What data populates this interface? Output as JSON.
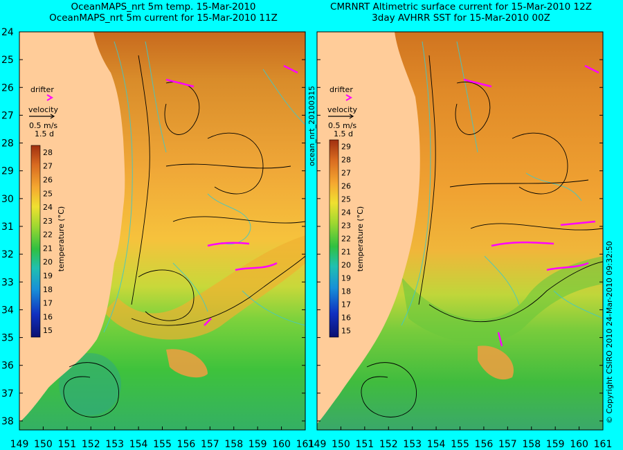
{
  "left_panel": {
    "title_line1": "OceanMAPS_nrt 5m temp. 15-Mar-2010",
    "title_line2": "OceanMAPS_nrt 5m current for 15-Mar-2010 11Z"
  },
  "right_panel": {
    "title_line1": "CMRNRT Altimetric surface current for 15-Mar-2010 12Z",
    "title_line2": "3day AVHRR SST for 15-Mar-2010 00Z"
  },
  "legend": {
    "drifter_label": "drifter",
    "velocity_label": "velocity",
    "velocity_scale": "0.5 m/s",
    "duration_scale": "1.5 d",
    "colorbar_title": "temperature (°C)",
    "left_ticks": [
      15,
      16,
      17,
      18,
      19,
      20,
      21,
      22,
      23,
      24,
      25,
      26,
      27,
      28
    ],
    "right_ticks": [
      15,
      16,
      17,
      18,
      19,
      20,
      21,
      22,
      23,
      24,
      25,
      26,
      27,
      28,
      29
    ]
  },
  "axes": {
    "lat_labels": [
      "24",
      "25",
      "26",
      "27",
      "28",
      "29",
      "30",
      "31",
      "32",
      "33",
      "34",
      "35",
      "36",
      "37",
      "38"
    ],
    "lon_labels": [
      "149",
      "150",
      "151",
      "152",
      "153",
      "154",
      "155",
      "156",
      "157",
      "158",
      "159",
      "160",
      "161"
    ]
  },
  "side_text": {
    "file_id": "ocean_nrt_20100315",
    "copyright": "© Copyright CSIRO 2010   24-Mar-2010 09:32:50"
  },
  "colors": {
    "background": "#00ffff",
    "land": "#ffcc99",
    "drifter": "#ff00ff",
    "contour": "#40c8c8",
    "streamline": "#000000"
  }
}
